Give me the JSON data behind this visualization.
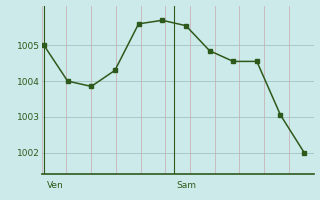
{
  "x": [
    0,
    1,
    2,
    3,
    4,
    5,
    6,
    7,
    8,
    9,
    10,
    11
  ],
  "y": [
    1005.0,
    1004.0,
    1003.85,
    1004.3,
    1005.6,
    1005.7,
    1005.55,
    1004.85,
    1004.55,
    1004.55,
    1003.05,
    1002.0
  ],
  "yticks": [
    1002,
    1003,
    1004,
    1005
  ],
  "ylim": [
    1001.4,
    1006.1
  ],
  "xlim": [
    -0.1,
    11.4
  ],
  "ven_x": 0.0,
  "sam_x": 5.5,
  "background_color": "#cdeaea",
  "line_color": "#2d5a1b",
  "hgrid_color": "#a8c8c8",
  "vgrid_color": "#c8a8b0",
  "label_color": "#2d5a1b",
  "axis_color": "#2d5a1b",
  "n_vgrid": 12
}
